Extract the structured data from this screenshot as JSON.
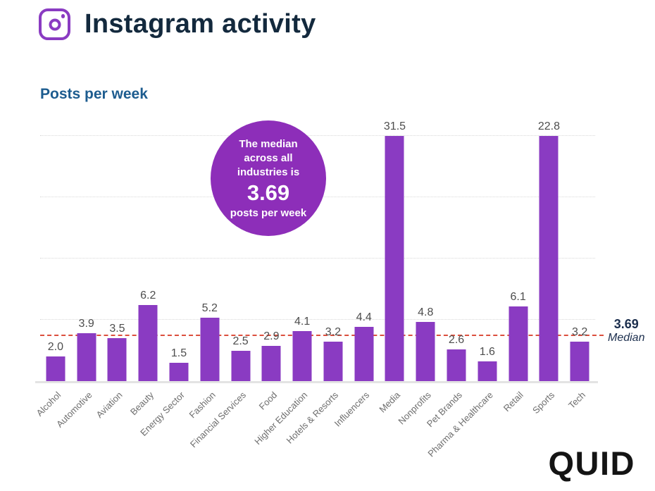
{
  "header": {
    "title": "Instagram activity",
    "icon": "instagram-icon"
  },
  "subtitle": "Posts per week",
  "annotation": {
    "intro": "The median across all industries is",
    "value": "3.69",
    "unit": "posts per week"
  },
  "median_label": {
    "value": "3.69",
    "caption": "Median"
  },
  "footer": {
    "brand": "QUID"
  },
  "colors": {
    "bar": "#8a3bc2",
    "annotation_circle": "#8d2eb9",
    "median_line": "#dc4f3d",
    "title_text": "#13293d",
    "subtitle_text": "#1d5c8f",
    "median_text": "#1b2e4d",
    "value_text": "#4d4d4d",
    "axis_text": "#6e6e6e"
  },
  "chart_data": {
    "type": "bar",
    "title": "Posts per week",
    "xlabel": "",
    "ylabel": "Posts per week",
    "categories": [
      "Alcohol",
      "Automotive",
      "Aviation",
      "Beauty",
      "Energy Sector",
      "Fashion",
      "Financial Services",
      "Food",
      "Higher Education",
      "Hotels & Resorts",
      "Influencers",
      "Media",
      "Nonprofits",
      "Pet Brands",
      "Pharma & Healthcare",
      "Retail",
      "Sports",
      "Tech"
    ],
    "values": [
      2.0,
      3.9,
      3.5,
      6.2,
      1.5,
      5.2,
      2.5,
      2.9,
      4.1,
      3.2,
      4.4,
      31.5,
      4.8,
      2.6,
      1.6,
      6.1,
      22.8,
      3.2
    ],
    "value_labels": [
      "2.0",
      "3.9",
      "3.5",
      "6.2",
      "1.5",
      "5.2",
      "2.5",
      "2.9",
      "4.1",
      "3.2",
      "4.4",
      "31.5",
      "4.8",
      "2.6",
      "1.6",
      "6.1",
      "22.8",
      "3.2"
    ],
    "median": 3.69,
    "ylim": [
      0,
      20
    ],
    "gridline_values": [
      5,
      10,
      15,
      20
    ],
    "grid": "dotted horizontal",
    "clipped_bars": [
      "Media",
      "Sports"
    ],
    "legend": "none"
  }
}
